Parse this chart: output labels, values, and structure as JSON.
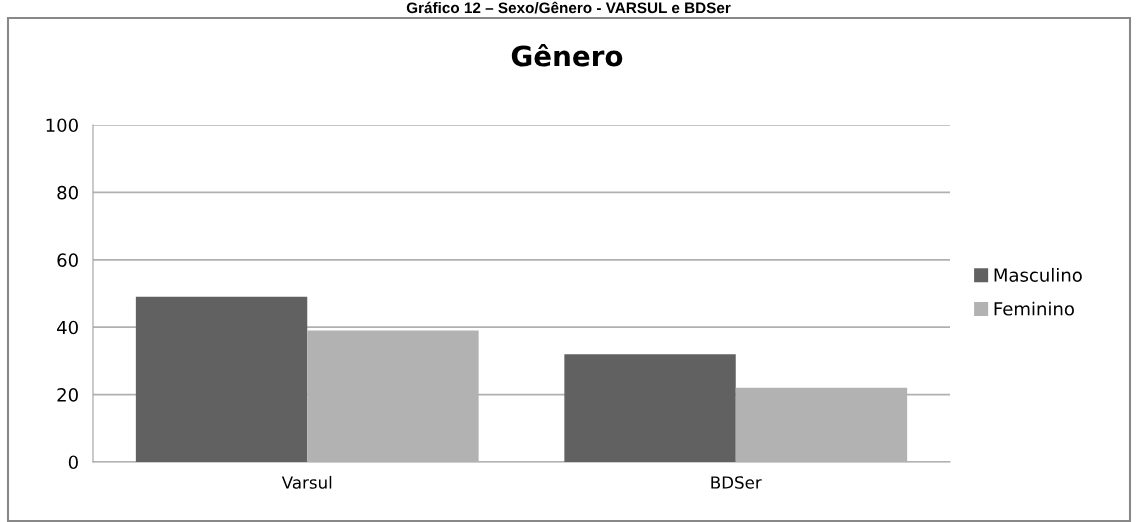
{
  "chart_data": {
    "type": "bar",
    "title": "Gênero",
    "annotations": [
      "Gráfico 12 – Sexo/Gênero - VARSUL e BDSer"
    ],
    "categories": [
      "Varsul",
      "BDSer"
    ],
    "series": [
      {
        "name": "Masculino",
        "color": "#616161",
        "values": [
          49,
          32
        ]
      },
      {
        "name": "Feminino",
        "color": "#b2b2b2",
        "values": [
          39,
          22
        ]
      }
    ],
    "ylim": [
      0,
      100
    ],
    "yticks": [
      0,
      20,
      40,
      60,
      80,
      100
    ],
    "grid": "y",
    "legend": "right"
  }
}
